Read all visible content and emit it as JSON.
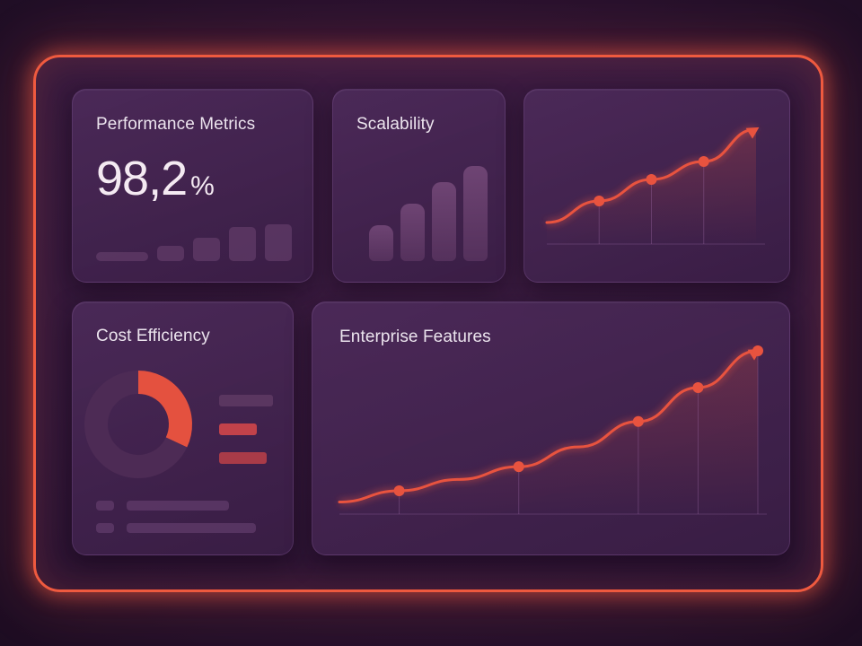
{
  "performance": {
    "title": "Performance Metrics",
    "value": "98,2",
    "unit": "%",
    "mini_bars": [
      8,
      14,
      22,
      32,
      34
    ]
  },
  "scalability": {
    "title": "Scalability",
    "bars": [
      40,
      64,
      88,
      106
    ]
  },
  "growth_card": {
    "chart_data": {
      "type": "line",
      "title": "",
      "x": [
        0,
        1,
        2,
        3,
        4
      ],
      "y": [
        10,
        22,
        34,
        44,
        62
      ],
      "markers_at": [
        1,
        2,
        3
      ],
      "arrow_end": true
    }
  },
  "cost": {
    "title": "Cost Efficiency",
    "chart_data": {
      "type": "pie",
      "slices": [
        {
          "label": "highlighted",
          "value": 32,
          "color": "#e4513f"
        },
        {
          "label": "remainder",
          "value": 68,
          "color": "#4d2b55"
        }
      ]
    },
    "legend_colors": [
      "#5a3660",
      "#c2424a",
      "#a93b48"
    ]
  },
  "enterprise": {
    "title": "Enterprise Features",
    "chart_data": {
      "type": "line",
      "title": "Enterprise Features",
      "x": [
        0,
        1,
        2,
        3,
        4,
        5,
        6,
        7
      ],
      "y": [
        6,
        14,
        22,
        31,
        45,
        63,
        87,
        113
      ],
      "markers_at": [
        1,
        3,
        5,
        6,
        7
      ],
      "arrow_end": true
    }
  },
  "colors": {
    "accent": "#ef5a3f",
    "line": "#e8533f",
    "card": "#45244f"
  }
}
